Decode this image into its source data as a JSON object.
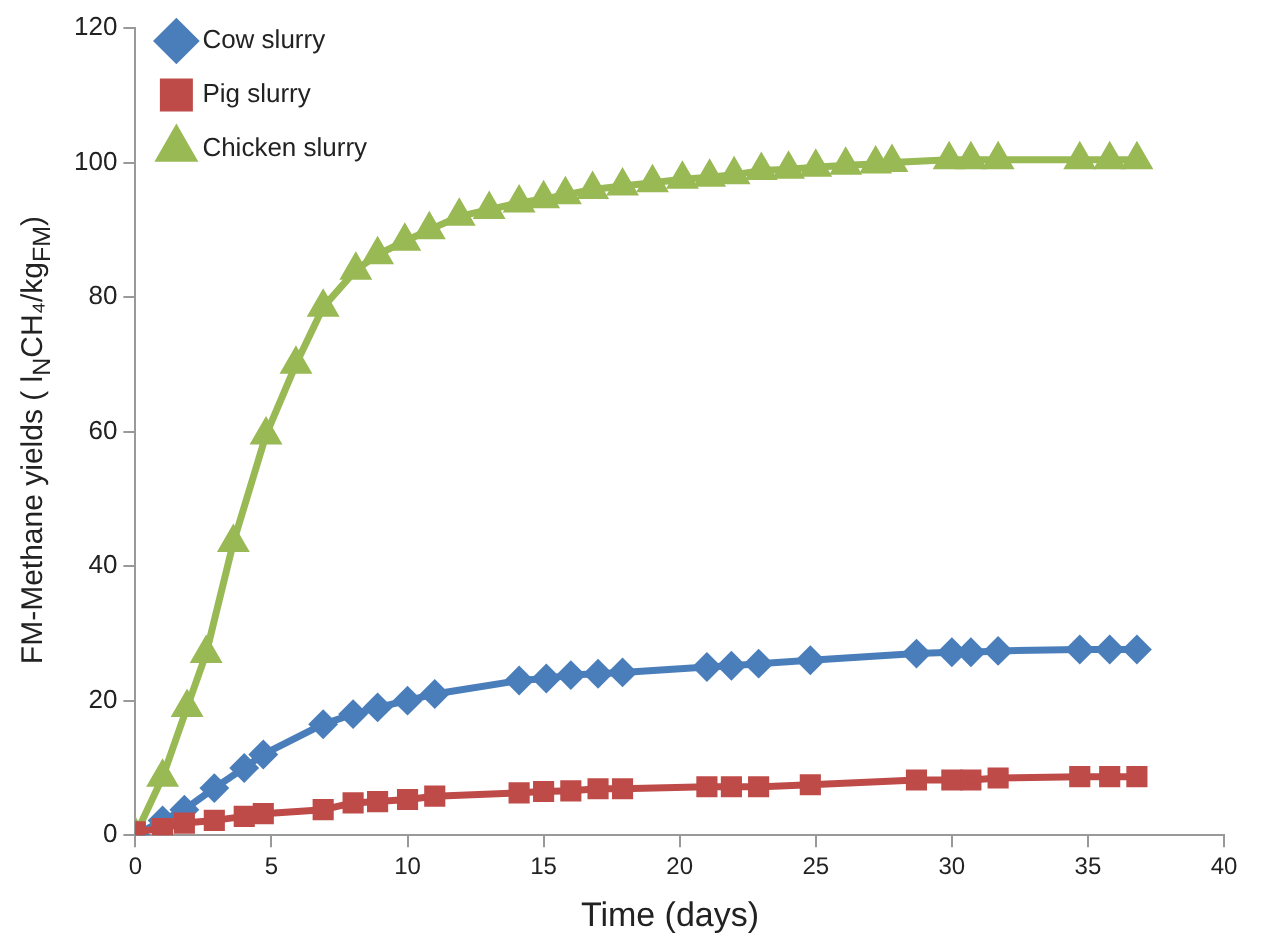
{
  "chart_data": {
    "type": "line",
    "xlabel": "Time (days)",
    "ylabel": "FM-Methane yields ( l$_{N}$CH₄/kg$_{FM}$)",
    "xlim": [
      0,
      40
    ],
    "xticks": [
      0,
      5,
      10,
      15,
      20,
      25,
      30,
      35,
      40
    ],
    "ylim": [
      0,
      120
    ],
    "yticks": [
      0,
      20,
      40,
      60,
      80,
      100,
      120
    ],
    "grid": false,
    "legend": "top left",
    "line_style": "solid",
    "series": [
      {
        "name": "Cow slurry",
        "color": "#4a7ebb",
        "marker": "diamond",
        "x": [
          0,
          1,
          1.8,
          2.9,
          4,
          4.7,
          6.9,
          8,
          8.9,
          10,
          11,
          14.1,
          15.1,
          16,
          17,
          17.9,
          21,
          21.9,
          22.9,
          24.8,
          28.7,
          30,
          30.7,
          31.7,
          34.7,
          35.8,
          36.8
        ],
        "values": [
          0,
          2.2,
          3.8,
          7,
          10,
          12,
          16.5,
          18,
          19,
          20,
          21,
          23,
          23.3,
          23.8,
          24,
          24.2,
          25,
          25.2,
          25.5,
          26,
          27,
          27.2,
          27.2,
          27.4,
          27.6,
          27.6,
          27.6
        ]
      },
      {
        "name": "Pig slurry",
        "color": "#be4b48",
        "marker": "square",
        "x": [
          0,
          1,
          1.8,
          2.9,
          4,
          4.7,
          6.9,
          8,
          8.9,
          10,
          11,
          14.1,
          15,
          16,
          17,
          17.9,
          21,
          21.9,
          22.9,
          24.8,
          28.7,
          30,
          30.7,
          31.7,
          34.7,
          35.8,
          36.8
        ],
        "values": [
          0.5,
          1,
          1.8,
          2.2,
          2.8,
          3.2,
          3.8,
          4.8,
          5,
          5.3,
          5.8,
          6.3,
          6.5,
          6.6,
          6.9,
          6.9,
          7.2,
          7.2,
          7.2,
          7.5,
          8.2,
          8.2,
          8.2,
          8.5,
          8.7,
          8.7,
          8.7
        ]
      },
      {
        "name": "Chicken slurry",
        "color": "#98b954",
        "marker": "triangle",
        "x": [
          0,
          1,
          1.9,
          2.6,
          3.6,
          4.8,
          5.9,
          6.9,
          8.1,
          8.9,
          9.9,
          10.8,
          11.9,
          13,
          14.1,
          15,
          15.8,
          16.8,
          17.9,
          19,
          20.1,
          21.1,
          22,
          23,
          24,
          25,
          26.1,
          27.2,
          27.8,
          29.9,
          30.7,
          31.7,
          34.7,
          35.8,
          36.8
        ],
        "values": [
          0,
          8.6,
          19,
          27,
          43.5,
          59.5,
          70,
          78.5,
          84,
          86.3,
          88.3,
          90,
          92,
          93,
          94,
          94.6,
          95.2,
          96,
          96.5,
          97,
          97.5,
          97.8,
          98.2,
          98.8,
          99,
          99.3,
          99.6,
          99.8,
          100,
          100.4,
          100.4,
          100.4,
          100.4,
          100.4,
          100.4
        ]
      }
    ]
  }
}
